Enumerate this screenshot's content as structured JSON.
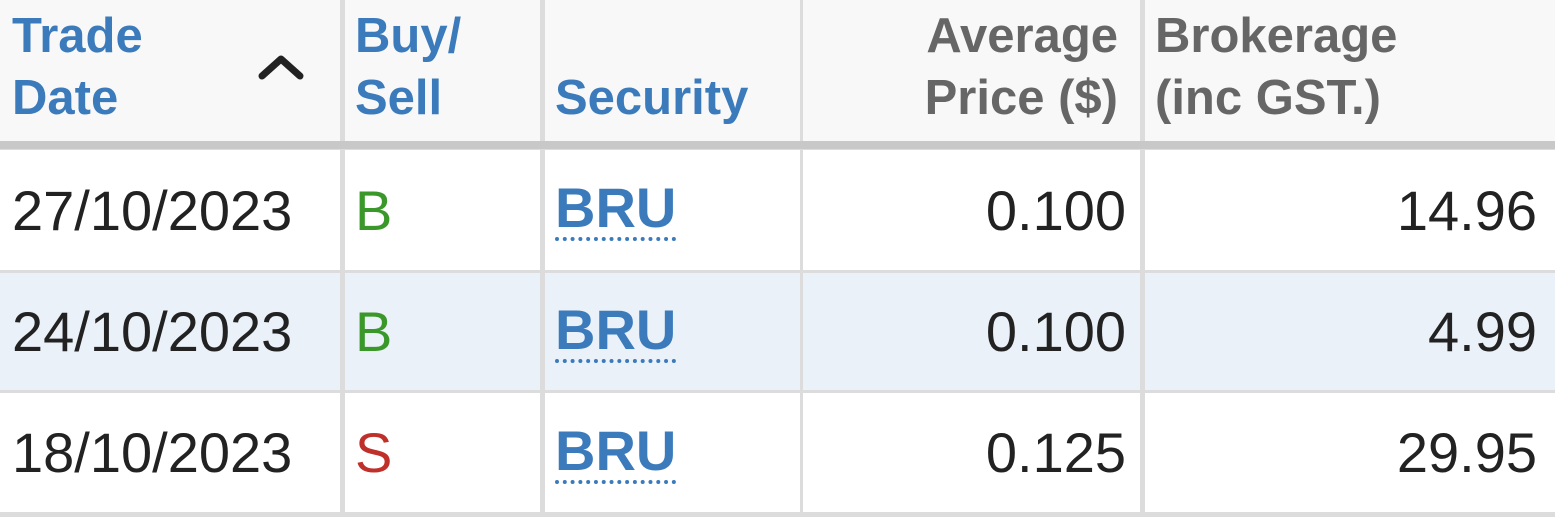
{
  "table": {
    "header": [
      {
        "lines": [
          "Trade",
          "Date"
        ]
      },
      {
        "lines": [
          "Buy/",
          "Sell"
        ]
      },
      {
        "lines": [
          "Security"
        ]
      },
      {
        "lines": [
          "Average",
          "Price ($)"
        ]
      },
      {
        "lines": [
          "Brokerage",
          "(inc GST.)"
        ]
      }
    ],
    "rows": [
      [
        "27/10/2023",
        "B",
        "BRU",
        "0.100",
        "14.96"
      ],
      [
        "24/10/2023",
        "B",
        "BRU",
        "0.100",
        "4.99"
      ],
      [
        "18/10/2023",
        "S",
        "BRU",
        "0.125",
        "29.95"
      ]
    ]
  }
}
